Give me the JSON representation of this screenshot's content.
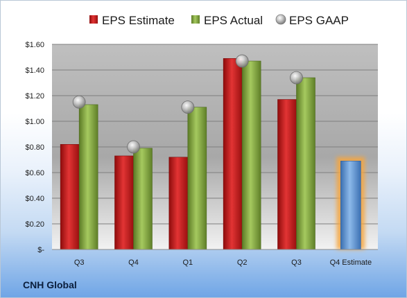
{
  "chart_data": {
    "type": "bar",
    "categories": [
      "Q3",
      "Q4",
      "Q1",
      "Q2",
      "Q3",
      "Q4 Estimate"
    ],
    "series": [
      {
        "name": "EPS Estimate",
        "values": [
          0.82,
          0.73,
          0.72,
          1.49,
          1.17,
          null
        ],
        "color": "#d42121"
      },
      {
        "name": "EPS Actual",
        "values": [
          1.13,
          0.79,
          1.11,
          1.47,
          1.34,
          null
        ],
        "color": "#8cb04a"
      },
      {
        "name": "EPS GAAP",
        "values": [
          1.15,
          0.8,
          1.11,
          1.47,
          1.34,
          null
        ],
        "color": "#a9a9a9"
      }
    ],
    "estimate": {
      "category": "Q4 Estimate",
      "value": 0.69,
      "color": "#6ea2dd",
      "glow": "#f4a640"
    },
    "y_ticks": [
      0,
      0.2,
      0.4,
      0.6,
      0.8,
      1.0,
      1.2,
      1.4,
      1.6
    ],
    "y_tick_labels": [
      "$-",
      "$0.20",
      "$0.40",
      "$0.60",
      "$0.80",
      "$1.00",
      "$1.20",
      "$1.40",
      "$1.60"
    ],
    "ylim": [
      0,
      1.6
    ],
    "grid": true,
    "legend_position": "top"
  },
  "footer": {
    "company": "CNH Global"
  }
}
